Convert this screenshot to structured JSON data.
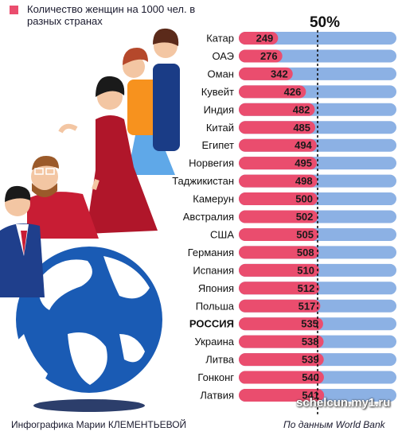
{
  "legend": {
    "text": "Количество женщин на 1000 чел. в разных странах",
    "color": "#ea4d6e"
  },
  "threshold_label": "50%",
  "footer": {
    "author": "Инфографика Марии КЛЕМЕНТЬЕВОЙ",
    "source": "По данным World Bank"
  },
  "watermark": "schelcun.my1.ru",
  "colors": {
    "bar": "#ea4d6e",
    "track": "#8cb1e4",
    "threshold": "#111111"
  },
  "chart_data": {
    "type": "bar",
    "orientation": "horizontal",
    "categories": [
      "Катар",
      "ОАЭ",
      "Оман",
      "Кувейт",
      "Индия",
      "Китай",
      "Египет",
      "Норвегия",
      "Таджикистан",
      "Камерун",
      "Австралия",
      "США",
      "Германия",
      "Испания",
      "Япония",
      "Польша",
      "РОССИЯ",
      "Украина",
      "Литва",
      "Гонконг",
      "Латвия"
    ],
    "values": [
      249,
      276,
      342,
      426,
      482,
      485,
      494,
      495,
      498,
      500,
      502,
      505,
      508,
      510,
      512,
      517,
      535,
      538,
      539,
      540,
      541
    ],
    "xlim": [
      0,
      1000
    ],
    "threshold": 500,
    "highlight": "РОССИЯ"
  }
}
